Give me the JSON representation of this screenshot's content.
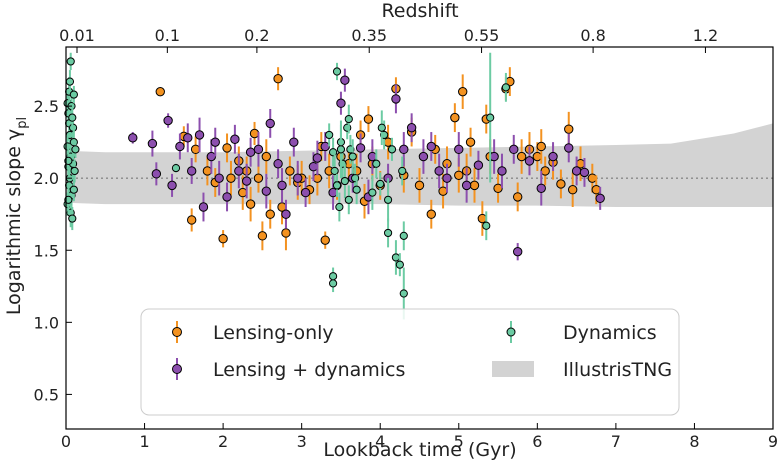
{
  "chart_data": {
    "type": "scatter",
    "xlabel": "Lookback time (Gyr)",
    "ylabel": "Logarithmic slope γ",
    "ylabel_subscript": "pl",
    "top_axis_label": "Redshift",
    "xlim": [
      0,
      9
    ],
    "ylim": [
      0.26,
      2.91
    ],
    "x_ticks": [
      0,
      1,
      2,
      3,
      4,
      5,
      6,
      7,
      8,
      9
    ],
    "y_ticks": [
      0.5,
      1.0,
      1.5,
      2.0,
      2.5
    ],
    "y_tick_labels": [
      "0.5",
      "1.0",
      "1.5",
      "2.0",
      "2.5"
    ],
    "top_ticks": [
      {
        "label": "0.01",
        "t": 0.14
      },
      {
        "label": "0.1",
        "t": 1.29
      },
      {
        "label": "0.2",
        "t": 2.43
      },
      {
        "label": "0.35",
        "t": 3.86
      },
      {
        "label": "0.55",
        "t": 5.29
      },
      {
        "label": "0.8",
        "t": 6.71
      },
      {
        "label": "1.2",
        "t": 8.14
      }
    ],
    "reference_line": 2.0,
    "colors": {
      "lensing": "#f39220",
      "lensing_dyn": "#8c4fae",
      "dynamics": "#6ccba3",
      "band": "#d3d3d3"
    },
    "band": {
      "name": "IllustrisTNG",
      "t": [
        0,
        0.5,
        1,
        2,
        3,
        4,
        5,
        6,
        7,
        7.7,
        8.5,
        9
      ],
      "lower": [
        1.83,
        1.82,
        1.82,
        1.82,
        1.82,
        1.82,
        1.81,
        1.81,
        1.8,
        1.8,
        1.8,
        1.8
      ],
      "upper": [
        2.19,
        2.18,
        2.18,
        2.18,
        2.19,
        2.2,
        2.21,
        2.22,
        2.23,
        2.24,
        2.31,
        2.38
      ]
    },
    "series": [
      {
        "name": "Lensing-only",
        "key": "lensing",
        "points": [
          [
            1.2,
            2.6,
            0.02
          ],
          [
            1.5,
            2.29,
            0.07
          ],
          [
            1.6,
            1.71,
            0.08
          ],
          [
            1.65,
            2.2,
            0.09
          ],
          [
            1.8,
            2.05,
            0.1
          ],
          [
            1.9,
            1.97,
            0.1
          ],
          [
            2.0,
            1.58,
            0.06
          ],
          [
            2.05,
            2.21,
            0.1
          ],
          [
            2.1,
            2.0,
            0.12
          ],
          [
            2.2,
            2.12,
            0.1
          ],
          [
            2.25,
            1.9,
            0.12
          ],
          [
            2.3,
            2.05,
            0.1
          ],
          [
            2.35,
            1.82,
            0.12
          ],
          [
            2.4,
            2.31,
            0.08
          ],
          [
            2.45,
            2.0,
            0.1
          ],
          [
            2.5,
            1.6,
            0.1
          ],
          [
            2.55,
            2.15,
            0.12
          ],
          [
            2.6,
            1.75,
            0.1
          ],
          [
            2.7,
            2.69,
            0.08
          ],
          [
            2.75,
            1.8,
            0.12
          ],
          [
            2.8,
            1.62,
            0.12
          ],
          [
            2.85,
            2.05,
            0.1
          ],
          [
            2.95,
            1.97,
            0.12
          ],
          [
            3.0,
            2.0,
            0.12
          ],
          [
            3.1,
            1.92,
            0.1
          ],
          [
            3.2,
            2.0,
            0.12
          ],
          [
            3.25,
            2.22,
            0.1
          ],
          [
            3.3,
            1.57,
            0.06
          ],
          [
            3.35,
            2.05,
            0.12
          ],
          [
            3.45,
            1.95,
            0.1
          ],
          [
            3.5,
            2.15,
            0.1
          ],
          [
            3.6,
            2.1,
            0.12
          ],
          [
            3.7,
            2.05,
            0.12
          ],
          [
            3.75,
            2.3,
            0.1
          ],
          [
            3.8,
            1.84,
            0.12
          ],
          [
            3.85,
            2.41,
            0.09
          ],
          [
            3.9,
            2.1,
            0.12
          ],
          [
            4.0,
            1.95,
            0.1
          ],
          [
            4.1,
            2.25,
            0.12
          ],
          [
            4.2,
            2.62,
            0.08
          ],
          [
            4.3,
            2.02,
            0.12
          ],
          [
            4.4,
            2.32,
            0.1
          ],
          [
            4.5,
            1.95,
            0.12
          ],
          [
            4.65,
            1.75,
            0.1
          ],
          [
            4.7,
            2.2,
            0.1
          ],
          [
            4.8,
            1.91,
            0.12
          ],
          [
            4.85,
            2.1,
            0.12
          ],
          [
            4.95,
            2.42,
            0.1
          ],
          [
            5.0,
            2.02,
            0.12
          ],
          [
            5.05,
            2.6,
            0.12
          ],
          [
            5.1,
            2.05,
            0.12
          ],
          [
            5.15,
            2.25,
            0.1
          ],
          [
            5.2,
            1.95,
            0.12
          ],
          [
            5.3,
            1.72,
            0.12
          ],
          [
            5.35,
            2.41,
            0.1
          ],
          [
            5.4,
            2.15,
            0.12
          ],
          [
            5.5,
            1.93,
            0.1
          ],
          [
            5.6,
            2.62,
            0.08
          ],
          [
            5.65,
            2.67,
            0.1
          ],
          [
            5.75,
            1.87,
            0.1
          ],
          [
            5.8,
            2.15,
            0.12
          ],
          [
            5.9,
            2.2,
            0.12
          ],
          [
            6.0,
            2.15,
            0.1
          ],
          [
            6.05,
            2.22,
            0.12
          ],
          [
            6.1,
            2.05,
            0.1
          ],
          [
            6.2,
            2.11,
            0.12
          ],
          [
            6.3,
            1.96,
            0.1
          ],
          [
            6.4,
            2.34,
            0.12
          ],
          [
            6.45,
            1.92,
            0.12
          ],
          [
            6.55,
            2.1,
            0.12
          ],
          [
            6.7,
            2.0,
            0.1
          ],
          [
            6.75,
            1.92,
            0.1
          ]
        ]
      },
      {
        "name": "Lensing + dynamics",
        "key": "lensing_dyn",
        "points": [
          [
            0.85,
            2.28,
            0.04
          ],
          [
            1.1,
            2.24,
            0.09
          ],
          [
            1.15,
            2.03,
            0.08
          ],
          [
            1.3,
            2.4,
            0.05
          ],
          [
            1.35,
            1.95,
            0.08
          ],
          [
            1.45,
            2.22,
            0.09
          ],
          [
            1.55,
            2.28,
            0.1
          ],
          [
            1.6,
            2.05,
            0.09
          ],
          [
            1.7,
            2.3,
            0.12
          ],
          [
            1.75,
            1.8,
            0.1
          ],
          [
            1.85,
            2.15,
            0.12
          ],
          [
            1.9,
            2.25,
            0.1
          ],
          [
            1.95,
            2.0,
            0.12
          ],
          [
            2.05,
            1.87,
            0.1
          ],
          [
            2.15,
            2.27,
            0.1
          ],
          [
            2.2,
            2.05,
            0.12
          ],
          [
            2.3,
            1.98,
            0.12
          ],
          [
            2.35,
            2.18,
            0.1
          ],
          [
            2.45,
            2.2,
            0.12
          ],
          [
            2.55,
            1.91,
            0.12
          ],
          [
            2.6,
            2.38,
            0.1
          ],
          [
            2.7,
            2.1,
            0.1
          ],
          [
            2.75,
            1.95,
            0.12
          ],
          [
            2.8,
            1.75,
            0.1
          ],
          [
            2.9,
            2.25,
            0.1
          ],
          [
            2.95,
            2.0,
            0.12
          ],
          [
            3.05,
            1.9,
            0.1
          ],
          [
            3.15,
            2.08,
            0.1
          ],
          [
            3.2,
            2.14,
            0.12
          ],
          [
            3.3,
            2.22,
            0.1
          ],
          [
            3.4,
            1.9,
            0.12
          ],
          [
            3.5,
            2.52,
            0.08
          ],
          [
            3.55,
            2.68,
            0.08
          ],
          [
            3.65,
            2.0,
            0.1
          ],
          [
            3.75,
            2.21,
            0.1
          ],
          [
            3.85,
            1.87,
            0.12
          ],
          [
            3.9,
            2.15,
            0.12
          ],
          [
            4.1,
            2.0,
            0.1
          ],
          [
            4.2,
            2.55,
            0.1
          ],
          [
            4.3,
            2.2,
            0.12
          ],
          [
            4.4,
            2.35,
            0.1
          ],
          [
            4.55,
            2.15,
            0.12
          ],
          [
            4.65,
            2.22,
            0.1
          ],
          [
            4.75,
            2.05,
            0.12
          ],
          [
            4.85,
            2.0,
            0.1
          ],
          [
            5.0,
            2.2,
            0.12
          ],
          [
            5.1,
            1.95,
            0.12
          ],
          [
            5.25,
            2.09,
            0.1
          ],
          [
            5.45,
            2.15,
            0.12
          ],
          [
            5.55,
            2.05,
            0.12
          ],
          [
            5.7,
            2.2,
            0.1
          ],
          [
            5.75,
            1.49,
            0.06
          ],
          [
            5.9,
            2.12,
            0.1
          ],
          [
            6.05,
            1.93,
            0.12
          ],
          [
            6.2,
            2.15,
            0.1
          ],
          [
            6.4,
            2.21,
            0.1
          ],
          [
            6.5,
            2.05,
            0.1
          ],
          [
            6.6,
            2.04,
            0.1
          ],
          [
            6.8,
            1.86,
            0.08
          ]
        ]
      },
      {
        "name": "Dynamics",
        "key": "dynamics",
        "points": [
          [
            0.02,
            2.52,
            0.1
          ],
          [
            0.03,
            2.45,
            0.08
          ],
          [
            0.04,
            2.38,
            0.12
          ],
          [
            0.05,
            2.3,
            0.1
          ],
          [
            0.02,
            2.22,
            0.08
          ],
          [
            0.06,
            2.15,
            0.1
          ],
          [
            0.03,
            2.08,
            0.08
          ],
          [
            0.05,
            2.0,
            0.1
          ],
          [
            0.04,
            1.95,
            0.1
          ],
          [
            0.07,
            1.88,
            0.08
          ],
          [
            0.02,
            1.82,
            0.08
          ],
          [
            0.06,
            1.76,
            0.1
          ],
          [
            0.08,
            1.72,
            0.08
          ],
          [
            0.04,
            2.6,
            0.1
          ],
          [
            0.07,
            2.5,
            0.1
          ],
          [
            0.09,
            2.35,
            0.08
          ],
          [
            0.1,
            2.25,
            0.1
          ],
          [
            0.09,
            2.1,
            0.1
          ],
          [
            0.11,
            2.05,
            0.08
          ],
          [
            0.1,
            1.92,
            0.08
          ],
          [
            0.06,
            2.81,
            0.06
          ],
          [
            0.03,
            1.85,
            0.1
          ],
          [
            0.08,
            2.42,
            0.08
          ],
          [
            0.05,
            2.67,
            0.08
          ],
          [
            0.1,
            2.58,
            0.06
          ],
          [
            0.12,
            2.2,
            0.06
          ],
          [
            0.03,
            2.12,
            0.1
          ],
          [
            1.4,
            2.07,
            0.03
          ],
          [
            3.35,
            2.3,
            0.08
          ],
          [
            3.4,
            2.18,
            0.1
          ],
          [
            3.42,
            2.05,
            0.12
          ],
          [
            3.45,
            1.95,
            0.08
          ],
          [
            3.48,
            1.8,
            0.1
          ],
          [
            3.5,
            2.25,
            0.12
          ],
          [
            3.52,
            2.1,
            0.1
          ],
          [
            3.55,
            1.98,
            0.12
          ],
          [
            3.58,
            2.35,
            0.08
          ],
          [
            3.6,
            1.85,
            0.1
          ],
          [
            3.62,
            2.2,
            0.1
          ],
          [
            3.65,
            2.15,
            0.12
          ],
          [
            3.68,
            2.0,
            0.1
          ],
          [
            3.7,
            1.92,
            0.1
          ],
          [
            3.45,
            2.74,
            0.06
          ],
          [
            3.4,
            1.32,
            0.06
          ],
          [
            3.4,
            1.27,
            0.06
          ],
          [
            3.6,
            2.41,
            0.1
          ],
          [
            3.5,
            2.2,
            0.2
          ],
          [
            3.95,
            2.1,
            0.1
          ],
          [
            4.0,
            1.96,
            0.08
          ],
          [
            4.05,
            2.3,
            0.1
          ],
          [
            4.1,
            1.62,
            0.1
          ],
          [
            4.15,
            2.2,
            0.08
          ],
          [
            4.2,
            1.45,
            0.12
          ],
          [
            4.25,
            1.4,
            0.08
          ],
          [
            4.28,
            2.05,
            0.1
          ],
          [
            4.3,
            1.6,
            0.1
          ],
          [
            4.3,
            1.2,
            0.18
          ],
          [
            4.1,
            1.85,
            0.15
          ],
          [
            4.02,
            2.35,
            0.12
          ],
          [
            3.9,
            1.9,
            0.12
          ],
          [
            5.4,
            2.42,
            0.45
          ],
          [
            5.6,
            2.63,
            0.1
          ],
          [
            5.35,
            1.67,
            0.1
          ]
        ]
      }
    ]
  },
  "legend": {
    "items": [
      {
        "label": "Lensing-only"
      },
      {
        "label": "Lensing + dynamics"
      },
      {
        "label": "Dynamics"
      },
      {
        "label": "IllustrisTNG"
      }
    ]
  }
}
